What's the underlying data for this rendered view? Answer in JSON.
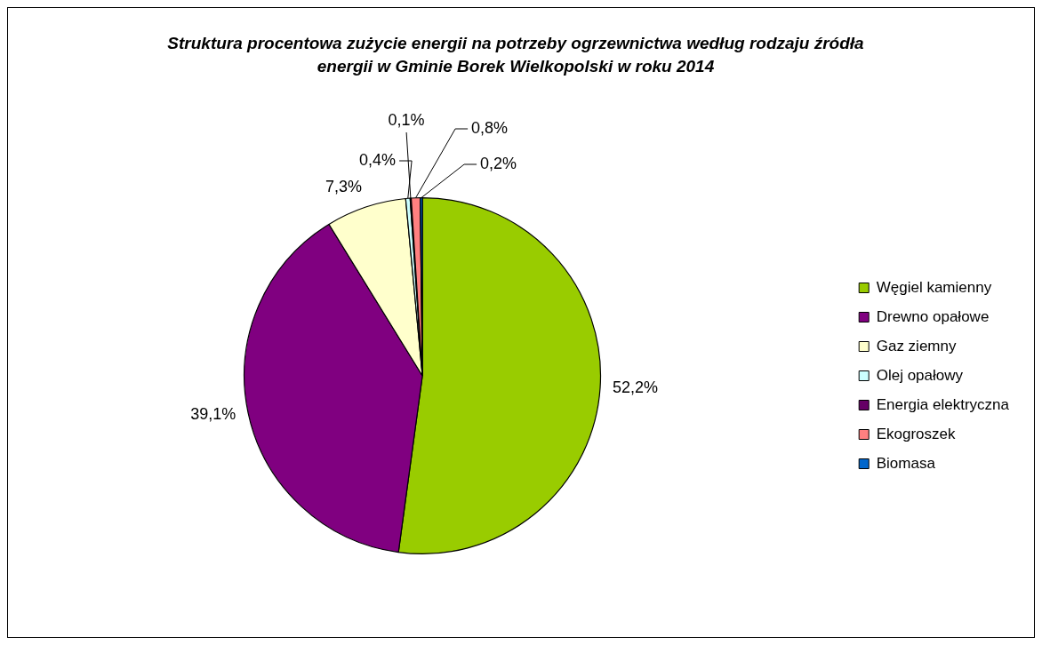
{
  "chart_data": {
    "type": "pie",
    "title": "Struktura procentowa zużycie energii na potrzeby ogrzewnictwa według rodzaju źródła energii w Gminie Borek Wielkopolski w roku 2014",
    "categories": [
      "Węgiel kamienny",
      "Drewno opałowe",
      "Gaz ziemny",
      "Olej opałowy",
      "Energia elektryczna",
      "Ekogroszek",
      "Biomasa"
    ],
    "values": [
      52.2,
      39.1,
      7.3,
      0.4,
      0.1,
      0.8,
      0.2
    ],
    "colors": [
      "#99cc00",
      "#800080",
      "#ffffcc",
      "#ccffff",
      "#660066",
      "#ff8080",
      "#0066cc"
    ],
    "value_labels": [
      "52,2%",
      "39,1%",
      "7,3%",
      "0,4%",
      "0,1%",
      "0,8%",
      "0,2%"
    ],
    "legend": "right"
  }
}
